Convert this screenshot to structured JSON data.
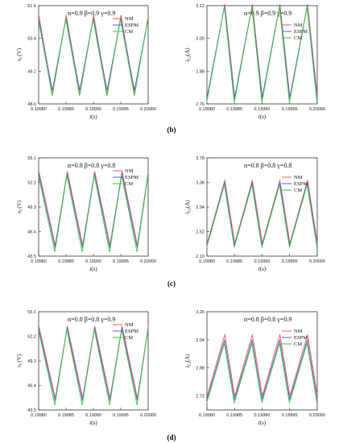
{
  "figure": {
    "panel_labels": [
      "(b)",
      "(c)",
      "(d)"
    ],
    "legend": [
      "NM",
      "ESPM",
      "CM"
    ]
  },
  "colors": {
    "NM": "#ff5555",
    "ESPM": "#5a5ae6",
    "CM": "#33cc33",
    "axis": "#333333"
  },
  "chart_data": [
    {
      "type": "line",
      "panel": "(b)",
      "side": "left",
      "params": "α=0.9  β=0.9  γ=0.9",
      "ylabel_var": "v",
      "ylabel_sub": "C",
      "ylabel_unit": "(V)",
      "xlabel_var": "t",
      "xlabel_unit": "(s)",
      "xlim": [
        0.1998,
        0.2
      ],
      "ylim": [
        48.0,
        51.6
      ],
      "xticks": [
        "0.19980",
        "0.19985",
        "0.19990",
        "0.19995",
        "0.20000"
      ],
      "yticks": [
        "48.0",
        "49.2",
        "50.4",
        "51.6"
      ],
      "peaks": [
        0.1998,
        0.19985,
        0.1999,
        0.19995,
        0.2
      ],
      "troughs": [
        0.199825,
        0.199875,
        0.199925,
        0.199975
      ],
      "max": 51.2,
      "min": 48.4,
      "series": [
        {
          "name": "NM",
          "max": 51.25,
          "min": 48.35
        },
        {
          "name": "ESPM",
          "max": 51.15,
          "min": 48.5
        },
        {
          "name": "CM",
          "max": 51.1,
          "min": 48.3
        }
      ]
    },
    {
      "type": "line",
      "panel": "(b)",
      "side": "right",
      "params": "α=0.9  β=0.9  γ=0.9",
      "ylabel_var": "i",
      "ylabel_sub": "L2",
      "ylabel_unit": "(A)",
      "xlabel_var": "t",
      "xlabel_unit": "(s)",
      "xlim": [
        0.1998,
        0.2
      ],
      "ylim": [
        2.76,
        3.12
      ],
      "xticks": [
        "0.19980",
        "0.19985",
        "0.19990",
        "0.19995",
        "0.20000"
      ],
      "yticks": [
        "2.76",
        "2.88",
        "3.00",
        "3.12"
      ],
      "peaks": [
        0.199832,
        0.199882,
        0.199932,
        0.199982
      ],
      "troughs": [
        0.1998,
        0.19985,
        0.1999,
        0.19995,
        0.2
      ],
      "max": 3.12,
      "min": 2.78,
      "series": [
        {
          "name": "NM",
          "max": 3.125,
          "min": 2.785
        },
        {
          "name": "ESPM",
          "max": 3.12,
          "min": 2.78
        },
        {
          "name": "CM",
          "max": 3.115,
          "min": 2.765
        }
      ]
    },
    {
      "type": "line",
      "panel": "(c)",
      "side": "left",
      "params": "α=0.8  β=0.8  γ=0.8",
      "ylabel_var": "v",
      "ylabel_sub": "C",
      "ylabel_unit": "(V)",
      "xlabel_var": "t",
      "xlabel_unit": "(s)",
      "xlim": [
        0.1998,
        0.2
      ],
      "ylim": [
        43.5,
        55.1
      ],
      "xticks": [
        "0.19980",
        "0.19985",
        "0.19990",
        "0.19995",
        "0.20000"
      ],
      "yticks": [
        "43.5",
        "46.4",
        "49.3",
        "52.2",
        "55.1"
      ],
      "peaks": [
        0.1998,
        0.199852,
        0.199902,
        0.199952,
        0.2
      ],
      "troughs": [
        0.19983,
        0.19988,
        0.19993,
        0.19998
      ],
      "max": 53.3,
      "min": 44.5,
      "series": [
        {
          "name": "NM",
          "max": 53.5,
          "min": 44.8
        },
        {
          "name": "ESPM",
          "max": 53.3,
          "min": 44.5
        },
        {
          "name": "CM",
          "max": 53.0,
          "min": 44.0
        }
      ]
    },
    {
      "type": "line",
      "panel": "(c)",
      "side": "right",
      "params": "α=0.8  β=0.8  γ=0.8",
      "ylabel_var": "i",
      "ylabel_sub": "L2",
      "ylabel_unit": "(A)",
      "xlabel_var": "t",
      "xlabel_unit": "(s)",
      "xlim": [
        0.1998,
        0.2
      ],
      "ylim": [
        2.1,
        3.78
      ],
      "xticks": [
        "0.19980",
        "0.19985",
        "0.19990",
        "0.19995",
        "0.20000"
      ],
      "yticks": [
        "2.10",
        "2.52",
        "2.94",
        "3.36",
        "3.78"
      ],
      "peaks": [
        0.199832,
        0.199882,
        0.199932,
        0.199982
      ],
      "troughs": [
        0.1998,
        0.19985,
        0.1999,
        0.19995,
        0.2
      ],
      "max": 3.36,
      "min": 2.28,
      "series": [
        {
          "name": "NM",
          "max": 3.4,
          "min": 2.32
        },
        {
          "name": "ESPM",
          "max": 3.36,
          "min": 2.28
        },
        {
          "name": "CM",
          "max": 3.32,
          "min": 2.25
        }
      ]
    },
    {
      "type": "line",
      "panel": "(d)",
      "side": "left",
      "params": "α=0.8  β=0.8  γ=0.9",
      "ylabel_var": "v",
      "ylabel_sub": "C",
      "ylabel_unit": "(V)",
      "xlabel_var": "t",
      "xlabel_unit": "(s)",
      "xlim": [
        0.1998,
        0.2
      ],
      "ylim": [
        43.5,
        55.1
      ],
      "xticks": [
        "0.19980",
        "0.19985",
        "0.19990",
        "0.19995",
        "0.20000"
      ],
      "yticks": [
        "43.5",
        "46.4",
        "49.3",
        "52.2",
        "55.1"
      ],
      "peaks": [
        0.1998,
        0.199852,
        0.199902,
        0.199952,
        0.2
      ],
      "troughs": [
        0.19983,
        0.19988,
        0.19993,
        0.19998
      ],
      "max": 53.2,
      "min": 44.6,
      "series": [
        {
          "name": "NM",
          "max": 53.4,
          "min": 44.9
        },
        {
          "name": "ESPM",
          "max": 53.2,
          "min": 44.6
        },
        {
          "name": "CM",
          "max": 53.0,
          "min": 44.1
        }
      ]
    },
    {
      "type": "line",
      "panel": "(d)",
      "side": "right",
      "params": "α=0.8  β=0.8  γ=0.9",
      "ylabel_var": "i",
      "ylabel_sub": "L2",
      "ylabel_unit": "(A)",
      "xlabel_var": "t",
      "xlabel_unit": "(s)",
      "xlim": [
        0.1998,
        0.2
      ],
      "ylim": [
        2.64,
        3.2
      ],
      "xticks": [
        "0.19980",
        "0.19985",
        "0.19990",
        "0.19995",
        "0.20000"
      ],
      "yticks": [
        "2.72",
        "2.88",
        "3.04",
        "3.20"
      ],
      "peaks": [
        0.199832,
        0.199882,
        0.199932,
        0.199982
      ],
      "troughs": [
        0.1998,
        0.19985,
        0.1999,
        0.19995,
        0.2
      ],
      "max": 3.04,
      "min": 2.7,
      "series": [
        {
          "name": "NM",
          "max": 3.07,
          "min": 2.72
        },
        {
          "name": "ESPM",
          "max": 3.04,
          "min": 2.7
        },
        {
          "name": "CM",
          "max": 3.02,
          "min": 2.68
        }
      ]
    }
  ]
}
